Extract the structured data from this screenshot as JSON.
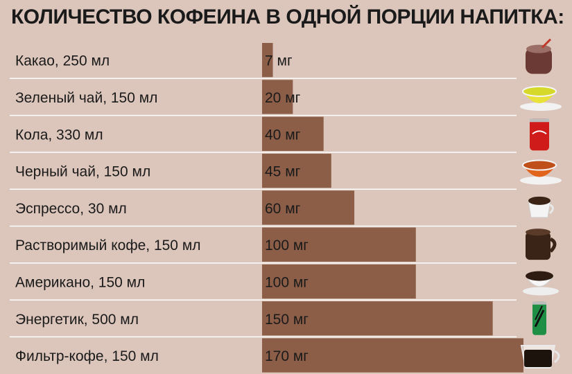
{
  "title": "КОЛИЧЕСТВО КОФЕИНА В ОДНОЙ ПОРЦИИ НАПИТКА:",
  "colors": {
    "background": "#dcc6bb",
    "bar": "#8c5e48",
    "separator": "#ffffff",
    "text": "#1a1a1a"
  },
  "chart_data": {
    "type": "bar",
    "orientation": "horizontal",
    "title": "КОЛИЧЕСТВО КОФЕИНА В ОДНОЙ ПОРЦИИ НАПИТКА:",
    "categories": [
      "Какао, 250 мл",
      "Зеленый чай, 150 мл",
      "Кола, 330 мл",
      "Черный чай, 150 мл",
      "Эспрессо, 30 мл",
      "Растворимый кофе, 150 мл",
      "Американо, 150 мл",
      "Энергетик, 500 мл",
      "Фильтр-кофе, 150 мл"
    ],
    "values": [
      7,
      20,
      40,
      45,
      60,
      100,
      100,
      150,
      170
    ],
    "data_labels": [
      "7 мг",
      "20 мг",
      "40 мг",
      "45 мг",
      "60 мг",
      "100 мг",
      "100 мг",
      "150 мг",
      "170 мг"
    ],
    "icons": [
      "cocoa-mug-icon",
      "green-tea-cup-icon",
      "cola-can-icon",
      "black-tea-cup-icon",
      "espresso-cup-icon",
      "instant-coffee-mug-icon",
      "americano-cup-icon",
      "energy-drink-can-icon",
      "filter-coffee-cup-icon"
    ],
    "xlim": [
      0,
      170
    ],
    "grid": false,
    "legend": "none"
  }
}
